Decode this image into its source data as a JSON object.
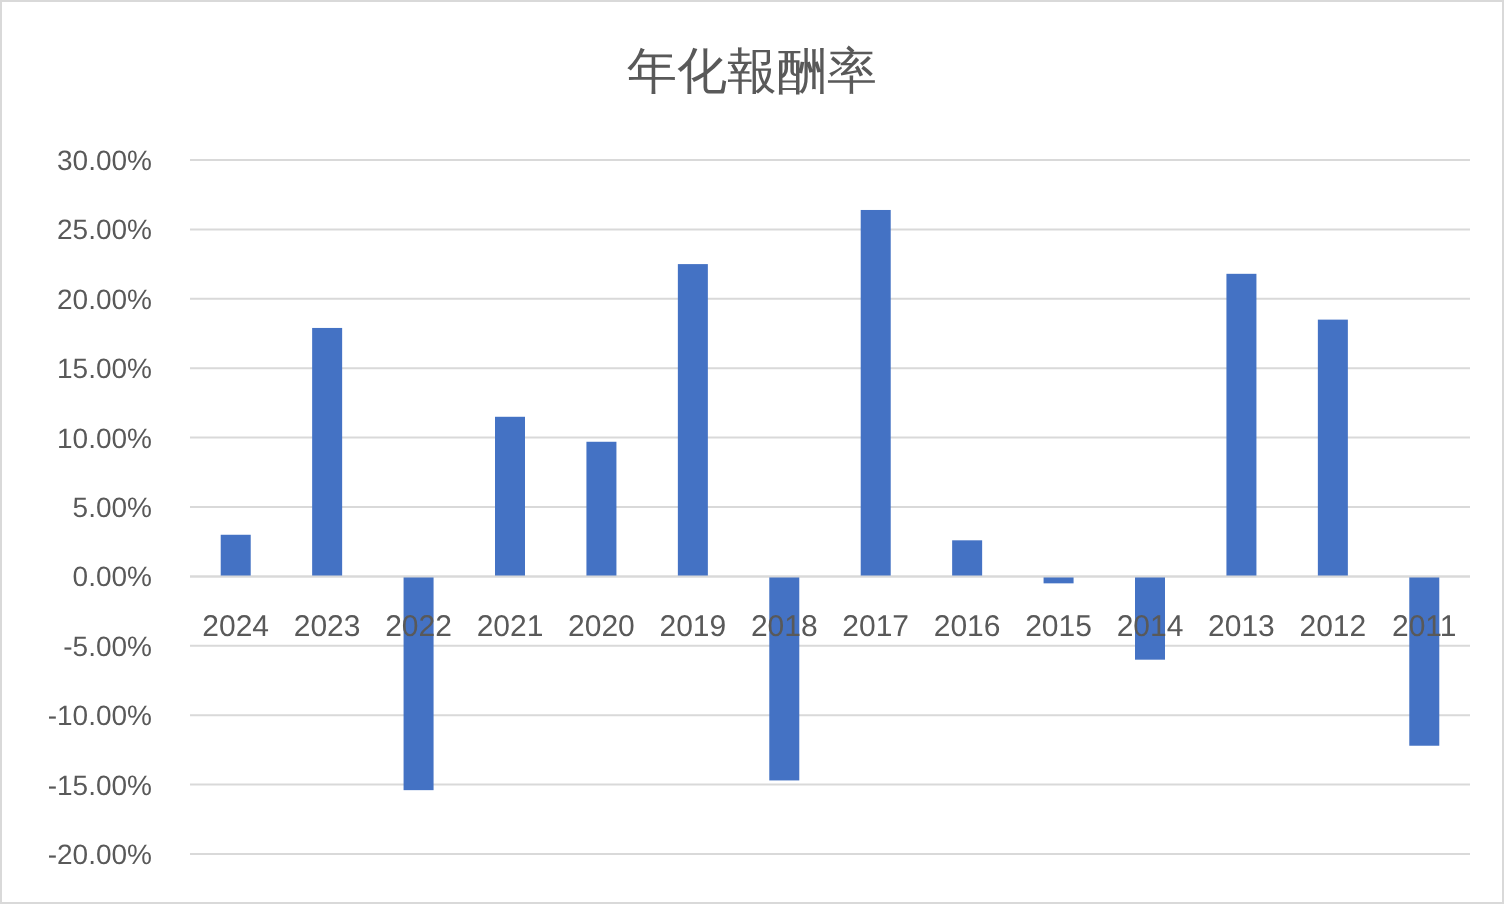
{
  "chart_data": {
    "type": "bar",
    "title": "年化報酬率",
    "categories": [
      "2024",
      "2023",
      "2022",
      "2021",
      "2020",
      "2019",
      "2018",
      "2017",
      "2016",
      "2015",
      "2014",
      "2013",
      "2012",
      "2011"
    ],
    "values": [
      3.0,
      17.9,
      -15.4,
      11.5,
      9.7,
      22.5,
      -14.7,
      26.4,
      2.6,
      -0.5,
      -6.0,
      21.8,
      18.5,
      -12.2
    ],
    "color": "#4472c4",
    "ylim": [
      -20,
      30
    ],
    "yticks": [
      {
        "value": -20,
        "label": "-20.00%"
      },
      {
        "value": -15,
        "label": "-15.00%"
      },
      {
        "value": -10,
        "label": "-10.00%"
      },
      {
        "value": -5,
        "label": "-5.00%"
      },
      {
        "value": 0,
        "label": "0.00%"
      },
      {
        "value": 5,
        "label": "5.00%"
      },
      {
        "value": 10,
        "label": "10.00%"
      },
      {
        "value": 15,
        "label": "15.00%"
      },
      {
        "value": 20,
        "label": "20.00%"
      },
      {
        "value": 25,
        "label": "25.00%"
      },
      {
        "value": 30,
        "label": "30.00%"
      }
    ],
    "grid": "y"
  }
}
